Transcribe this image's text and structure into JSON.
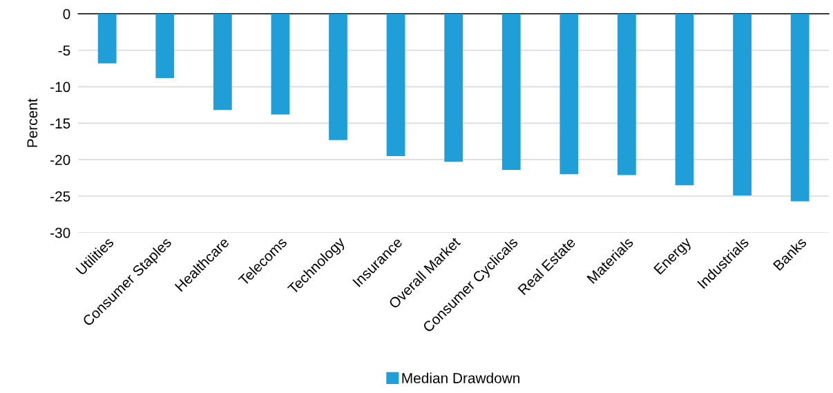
{
  "chart_data": {
    "type": "bar",
    "ylabel": "Percent",
    "categories": [
      "Utilities",
      "Consumer Staples",
      "Healthcare",
      "Telecoms",
      "Technology",
      "Insurance",
      "Overall Market",
      "Consumer Cyclicals",
      "Real Estate",
      "Materials",
      "Energy",
      "Industrials",
      "Banks"
    ],
    "series": [
      {
        "name": "Median Drawdown",
        "color": "#1f9ed8",
        "values": [
          -6.8,
          -8.8,
          -13.2,
          -13.8,
          -17.3,
          -19.5,
          -20.3,
          -21.4,
          -22.0,
          -22.1,
          -23.5,
          -24.9,
          -25.7
        ]
      }
    ],
    "ylim": [
      -30,
      0
    ],
    "yticks": [
      -30,
      -25,
      -20,
      -15,
      -10,
      -5,
      0
    ],
    "grid": "y",
    "legend": "bottom"
  }
}
